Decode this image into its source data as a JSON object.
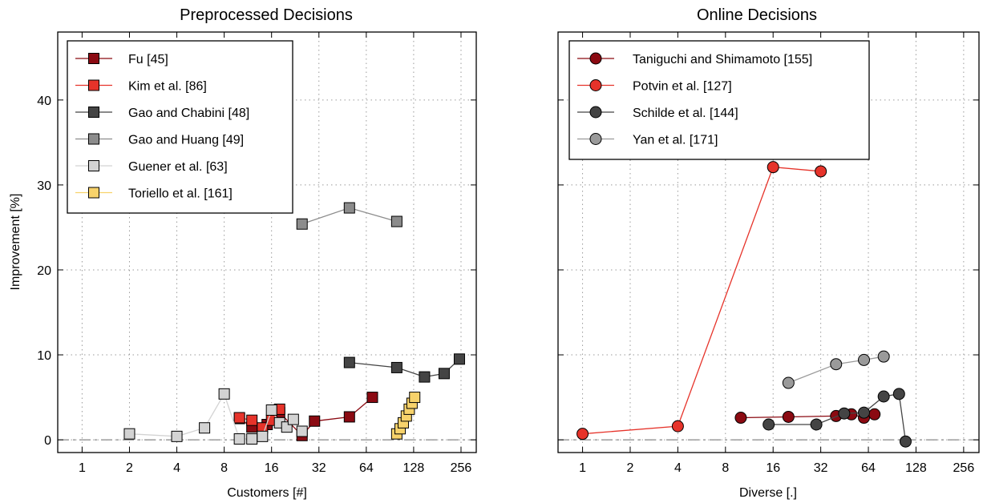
{
  "colors": {
    "fu": "#8b0a12",
    "kim": "#e6332a",
    "gao_chabini": "#444444",
    "gao_huang": "#8c8c8c",
    "guener": "#d3d3d3",
    "toriello": "#f7d26b",
    "taniguchi": "#8b0a12",
    "potvin": "#e6332a",
    "schilde": "#444444",
    "yan": "#9a9a9a",
    "baseline": "#888888",
    "grid": "#9a9a9a"
  },
  "chart_data": [
    {
      "type": "line",
      "title": "Preprocessed Decisions",
      "xlabel": "Customers [#]",
      "ylabel": "Improvement [%]",
      "xscale": "log2",
      "xlim": [
        0.7,
        320
      ],
      "ylim": [
        -1.5,
        48
      ],
      "xticks": [
        1,
        2,
        4,
        8,
        16,
        32,
        64,
        128,
        256
      ],
      "xtick_labels": [
        "1",
        "2",
        "4",
        "8",
        "16",
        "32",
        "64",
        "128",
        "256"
      ],
      "yticks": [
        0,
        10,
        20,
        30,
        40
      ],
      "ytick_labels": [
        "0",
        "10",
        "20",
        "30",
        "40"
      ],
      "grid": true,
      "legend_position": "top-left",
      "marker": "square",
      "series": [
        {
          "name": "Fu [45]",
          "color_key": "fu",
          "x": [
            10,
            12,
            15,
            18,
            25,
            30,
            50,
            70
          ],
          "y": [
            2.5,
            1.5,
            1.8,
            3.2,
            0.5,
            2.2,
            2.7,
            5.0
          ]
        },
        {
          "name": "Kim et al. [86]",
          "color_key": "kim",
          "x": [
            10,
            12,
            14,
            16,
            18
          ],
          "y": [
            2.6,
            2.3,
            1.4,
            2.3,
            3.6
          ]
        },
        {
          "name": "Gao and Chabini [48]",
          "color_key": "gao_chabini",
          "x": [
            50,
            100,
            150,
            200,
            250
          ],
          "y": [
            9.1,
            8.5,
            7.4,
            7.8,
            9.5
          ]
        },
        {
          "name": "Gao and Huang [49]",
          "color_key": "gao_huang",
          "x": [
            25,
            50,
            100
          ],
          "y": [
            25.4,
            27.3,
            25.7
          ]
        },
        {
          "name": "Guener et al. [63]",
          "color_key": "guener",
          "x": [
            2,
            4,
            6,
            8,
            10,
            12,
            14,
            16,
            18,
            20,
            22,
            25
          ],
          "y": [
            0.7,
            0.4,
            1.4,
            5.4,
            0.1,
            0.1,
            0.4,
            3.5,
            2.0,
            1.5,
            2.4,
            1.0
          ]
        },
        {
          "name": "Toriello et al. [161]",
          "color_key": "toriello",
          "x": [
            100,
            105,
            110,
            115,
            120,
            125,
            130
          ],
          "y": [
            0.7,
            1.3,
            2.0,
            2.8,
            3.6,
            4.3,
            5.0
          ]
        }
      ]
    },
    {
      "type": "line",
      "title": "Online Decisions",
      "xlabel": "Diverse [.]",
      "ylabel": "",
      "xscale": "log2",
      "xlim": [
        0.7,
        320
      ],
      "ylim": [
        -1.5,
        48
      ],
      "xticks": [
        1,
        2,
        4,
        8,
        16,
        32,
        64,
        128,
        256
      ],
      "xtick_labels": [
        "1",
        "2",
        "4",
        "8",
        "16",
        "32",
        "64",
        "128",
        "256"
      ],
      "yticks": [
        0,
        10,
        20,
        30,
        40
      ],
      "ytick_labels": [
        "",
        "",
        "",
        "",
        ""
      ],
      "grid": true,
      "legend_position": "top-left",
      "marker": "circle",
      "series": [
        {
          "name": "Taniguchi and Shimamoto [155]",
          "color_key": "taniguchi",
          "x": [
            10,
            20,
            40,
            50,
            60,
            70
          ],
          "y": [
            2.6,
            2.7,
            2.8,
            3.0,
            2.6,
            3.0
          ]
        },
        {
          "name": "Potvin et al. [127]",
          "color_key": "potvin",
          "x": [
            1,
            4,
            16,
            32
          ],
          "y": [
            0.7,
            1.6,
            32.1,
            31.6
          ]
        },
        {
          "name": "Schilde et al. [144]",
          "color_key": "schilde",
          "x": [
            15,
            30,
            45,
            60,
            80,
            100,
            110
          ],
          "y": [
            1.8,
            1.8,
            3.1,
            3.2,
            5.1,
            5.4,
            -0.2
          ]
        },
        {
          "name": "Yan et al. [171]",
          "color_key": "yan",
          "x": [
            20,
            40,
            60,
            80
          ],
          "y": [
            6.7,
            8.9,
            9.4,
            9.8
          ]
        }
      ]
    }
  ]
}
